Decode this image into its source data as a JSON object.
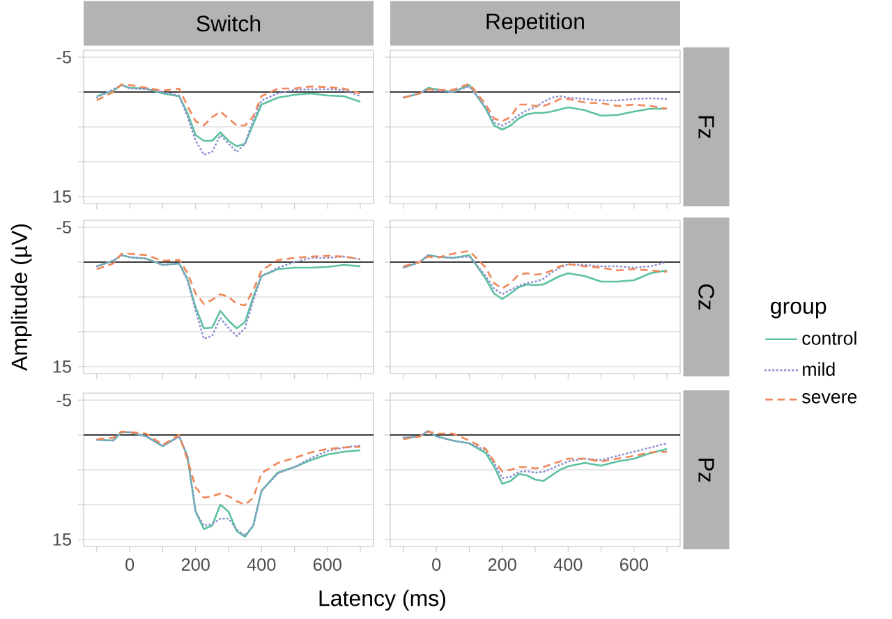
{
  "chart_data": [
    {
      "type": "line",
      "title": "Switch",
      "x": [
        -100,
        -50,
        -25,
        0,
        50,
        100,
        150,
        175,
        200,
        225,
        250,
        275,
        300,
        325,
        350,
        375,
        400,
        450,
        500,
        550,
        600,
        650,
        700
      ],
      "xlim": [
        -140,
        740
      ],
      "ylim": [
        16,
        -6
      ],
      "xticks": [
        {
          "value": -100,
          "label": null
        },
        0,
        {
          "value": 100,
          "label": null
        },
        200,
        {
          "value": 300,
          "label": null
        },
        400,
        {
          "value": 500,
          "label": null
        },
        600,
        {
          "value": 700,
          "label": null
        }
      ],
      "yticks": [
        -5,
        {
          "value": 0,
          "label": null
        },
        {
          "value": 5,
          "label": null
        },
        {
          "value": 10,
          "label": null
        },
        15
      ],
      "grid": "y",
      "tick_labels": "y",
      "ref_lines": [
        {
          "axis": "y",
          "value": 0,
          "color": "#000000"
        }
      ],
      "series": [
        {
          "color": "#5cc1a0",
          "line_style": "solid",
          "values": [
            0.6,
            -0.2,
            -1,
            -0.6,
            -0.5,
            0.2,
            0.6,
            3,
            6.2,
            7,
            7,
            5.8,
            7,
            7.8,
            7.4,
            4.6,
            1.8,
            0.8,
            0.4,
            0.2,
            0.5,
            0.6,
            1.4
          ]
        },
        {
          "color": "#8e90d0",
          "line_style": "dotted",
          "values": [
            0.8,
            -0.4,
            -1,
            -0.5,
            -0.4,
            0,
            0.5,
            3.5,
            7,
            9,
            8.6,
            6.2,
            7.4,
            8.6,
            7.4,
            4,
            1.2,
            0.2,
            -0.3,
            -0.4,
            -0.4,
            -0.3,
            0.6
          ]
        },
        {
          "color": "#f0875a",
          "line_style": "dashed",
          "values": [
            1.2,
            0,
            -1.1,
            -1,
            -0.6,
            -0.2,
            -0.5,
            2,
            4.2,
            4.8,
            3.6,
            2.8,
            3.8,
            4.8,
            4.8,
            3.5,
            0.6,
            -0.5,
            -0.5,
            -0.8,
            -0.7,
            -0.5,
            0.2
          ]
        }
      ]
    },
    {
      "type": "line",
      "title": "Repetition",
      "annotations": [
        "Fz"
      ],
      "x": [
        -100,
        -50,
        -25,
        0,
        50,
        100,
        150,
        175,
        200,
        225,
        250,
        275,
        300,
        325,
        350,
        375,
        400,
        450,
        500,
        550,
        600,
        650,
        700
      ],
      "xlim": [
        -140,
        740
      ],
      "ylim": [
        16,
        -6
      ],
      "xticks": [
        {
          "value": -100,
          "label": null
        },
        0,
        {
          "value": 100,
          "label": null
        },
        200,
        {
          "value": 300,
          "label": null
        },
        400,
        {
          "value": 500,
          "label": null
        },
        600,
        {
          "value": 700,
          "label": null
        }
      ],
      "yticks": [
        -5,
        {
          "value": 0,
          "label": null
        },
        {
          "value": 5,
          "label": null
        },
        {
          "value": 10,
          "label": null
        },
        15
      ],
      "grid": "y",
      "tick_labels": false,
      "ref_lines": [
        {
          "axis": "y",
          "value": 0,
          "color": "#000000"
        }
      ],
      "series": [
        {
          "color": "#5cc1a0",
          "line_style": "solid",
          "values": [
            0.8,
            0.2,
            -0.6,
            -0.4,
            0,
            -1,
            2.4,
            4.8,
            5.4,
            4.8,
            3.8,
            3.2,
            3,
            3,
            2.8,
            2.5,
            2.2,
            2.6,
            3.4,
            3.3,
            2.8,
            2.4,
            2.4
          ]
        },
        {
          "color": "#8e90d0",
          "line_style": "dotted",
          "values": [
            0.8,
            0.2,
            -0.4,
            -0.2,
            0,
            -0.8,
            2.2,
            4.4,
            4.8,
            4.2,
            3.3,
            2.6,
            2.2,
            1.4,
            0.8,
            0.6,
            0.8,
            1,
            1.2,
            1.2,
            1,
            0.9,
            1
          ]
        },
        {
          "color": "#f0875a",
          "line_style": "dashed",
          "values": [
            0.8,
            0.2,
            -0.4,
            -0.3,
            -0.3,
            -1.2,
            1.8,
            3.8,
            4.2,
            3.6,
            1.8,
            1.8,
            2,
            2,
            1.6,
            1,
            1,
            1.5,
            1.6,
            2,
            1.8,
            2,
            2.4
          ]
        }
      ]
    },
    {
      "type": "line",
      "ylabel": "Amplitude (µV)",
      "x": [
        -100,
        -50,
        -25,
        0,
        50,
        100,
        150,
        175,
        200,
        225,
        250,
        275,
        300,
        325,
        350,
        375,
        400,
        450,
        500,
        550,
        600,
        650,
        700
      ],
      "xlim": [
        -140,
        740
      ],
      "ylim": [
        16,
        -6
      ],
      "xticks": [
        {
          "value": -100,
          "label": null
        },
        0,
        {
          "value": 100,
          "label": null
        },
        200,
        {
          "value": 300,
          "label": null
        },
        400,
        {
          "value": 500,
          "label": null
        },
        600,
        {
          "value": 700,
          "label": null
        }
      ],
      "yticks": [
        -5,
        {
          "value": 0,
          "label": null
        },
        {
          "value": 5,
          "label": null
        },
        {
          "value": 10,
          "label": null
        },
        15
      ],
      "grid": "y",
      "tick_labels": "y",
      "ref_lines": [
        {
          "axis": "y",
          "value": 0,
          "color": "#000000"
        }
      ],
      "series": [
        {
          "color": "#5cc1a0",
          "line_style": "solid",
          "values": [
            0.6,
            -0.2,
            -1,
            -0.7,
            -0.5,
            0.4,
            0.2,
            2.4,
            6.5,
            9.5,
            9.4,
            7,
            8.4,
            9.5,
            8.6,
            5,
            2,
            1,
            0.8,
            0.8,
            0.7,
            0.4,
            0.6
          ]
        },
        {
          "color": "#8e90d0",
          "line_style": "dotted",
          "values": [
            0.6,
            -0.2,
            -1,
            -0.7,
            -0.5,
            0.4,
            0.2,
            2.6,
            7,
            11,
            10.6,
            8,
            9.5,
            10.6,
            9.5,
            5.5,
            2,
            0.8,
            0,
            -0.6,
            -0.6,
            -0.8,
            -0.4
          ]
        },
        {
          "color": "#f0875a",
          "line_style": "dashed",
          "values": [
            1,
            0.2,
            -1.2,
            -1.2,
            -1,
            -0.2,
            -0.3,
            1.5,
            4.5,
            6,
            5.4,
            4.6,
            5,
            6,
            6.2,
            4,
            1.2,
            -0.3,
            -0.6,
            -0.8,
            -0.9,
            -0.8,
            -0.4
          ]
        }
      ]
    },
    {
      "type": "line",
      "annotations": [
        "Cz"
      ],
      "legend": "right",
      "legend_title": "group",
      "x": [
        -100,
        -50,
        -25,
        0,
        50,
        100,
        150,
        175,
        200,
        225,
        250,
        275,
        300,
        325,
        350,
        375,
        400,
        450,
        500,
        550,
        600,
        650,
        700
      ],
      "xlim": [
        -140,
        740
      ],
      "ylim": [
        16,
        -6
      ],
      "xticks": [
        {
          "value": -100,
          "label": null
        },
        0,
        {
          "value": 100,
          "label": null
        },
        200,
        {
          "value": 300,
          "label": null
        },
        400,
        {
          "value": 500,
          "label": null
        },
        600,
        {
          "value": 700,
          "label": null
        }
      ],
      "yticks": [
        -5,
        {
          "value": 0,
          "label": null
        },
        {
          "value": 5,
          "label": null
        },
        {
          "value": 10,
          "label": null
        },
        15
      ],
      "grid": "y",
      "tick_labels": false,
      "ref_lines": [
        {
          "axis": "y",
          "value": 0,
          "color": "#000000"
        }
      ],
      "series": [
        {
          "name": "control",
          "color": "#5cc1a0",
          "line_style": "solid",
          "values": [
            0.8,
            0,
            -1,
            -0.8,
            -0.6,
            -1,
            2.4,
            4.5,
            5.3,
            4.5,
            3.6,
            3.2,
            3.3,
            3.2,
            2.6,
            2,
            1.6,
            2,
            2.8,
            2.8,
            2.6,
            1.6,
            1.2
          ]
        },
        {
          "name": "mild",
          "color": "#8e90d0",
          "line_style": "dotted",
          "values": [
            0.8,
            0,
            -1,
            -0.8,
            -0.6,
            -0.8,
            2,
            3.8,
            4.6,
            4,
            3.4,
            3,
            2.8,
            2.4,
            1.5,
            0.8,
            0.3,
            0.4,
            0.6,
            0.6,
            0.8,
            0.6,
            0
          ]
        },
        {
          "name": "severe",
          "color": "#f0875a",
          "line_style": "dashed",
          "values": [
            0.6,
            0,
            -0.8,
            -0.6,
            -1.2,
            -1.6,
            0.8,
            3,
            3.8,
            3,
            1.8,
            1.6,
            1.8,
            1.7,
            1.2,
            0.6,
            0.3,
            0.6,
            0.8,
            1.2,
            1,
            1.2,
            1.4
          ]
        }
      ]
    },
    {
      "type": "line",
      "xlabel": "Latency (ms)",
      "x": [
        -100,
        -50,
        -25,
        0,
        50,
        100,
        150,
        175,
        200,
        225,
        250,
        275,
        300,
        325,
        350,
        375,
        400,
        450,
        500,
        550,
        600,
        650,
        700
      ],
      "xlim": [
        -140,
        740
      ],
      "ylim": [
        16,
        -6
      ],
      "xticks": [
        {
          "value": -100,
          "label": null
        },
        0,
        {
          "value": 100,
          "label": null
        },
        200,
        {
          "value": 300,
          "label": null
        },
        400,
        {
          "value": 500,
          "label": null
        },
        600,
        {
          "value": 700,
          "label": null
        }
      ],
      "yticks": [
        -5,
        {
          "value": 0,
          "label": null
        },
        {
          "value": 5,
          "label": null
        },
        {
          "value": 10,
          "label": null
        },
        15
      ],
      "grid": "y",
      "ref_lines": [
        {
          "axis": "y",
          "value": 0,
          "color": "#000000"
        }
      ],
      "series": [
        {
          "color": "#5cc1a0",
          "line_style": "solid",
          "values": [
            0.7,
            0.8,
            -0.4,
            -0.4,
            0.2,
            1.6,
            0.2,
            3,
            11,
            13.5,
            13,
            10,
            11,
            13.8,
            14.6,
            13,
            8,
            5.4,
            4.6,
            3.6,
            2.8,
            2.4,
            2.2
          ]
        },
        {
          "color": "#8e90d0",
          "line_style": "dotted",
          "values": [
            0.7,
            0.8,
            -0.4,
            -0.4,
            0.2,
            1.6,
            0.2,
            3,
            11,
            13,
            12.8,
            12,
            12,
            13.6,
            14.4,
            13,
            8,
            5.5,
            4.6,
            3.3,
            2.3,
            1.8,
            1.5
          ]
        },
        {
          "color": "#f0875a",
          "line_style": "dashed",
          "values": [
            0.6,
            0.4,
            -0.5,
            -0.4,
            -0.2,
            1.4,
            0,
            3.5,
            7.5,
            9,
            8.8,
            8.4,
            8.8,
            9.5,
            10,
            9,
            5.5,
            4,
            3.3,
            2.5,
            2,
            1.8,
            1.7
          ]
        }
      ]
    },
    {
      "type": "line",
      "annotations": [
        "Pz"
      ],
      "x": [
        -100,
        -50,
        -25,
        0,
        50,
        100,
        150,
        175,
        200,
        225,
        250,
        275,
        300,
        325,
        350,
        375,
        400,
        450,
        500,
        550,
        600,
        650,
        700
      ],
      "xlim": [
        -140,
        740
      ],
      "ylim": [
        16,
        -6
      ],
      "xticks": [
        {
          "value": -100,
          "label": null
        },
        0,
        {
          "value": 100,
          "label": null
        },
        200,
        {
          "value": 300,
          "label": null
        },
        400,
        {
          "value": 500,
          "label": null
        },
        600,
        {
          "value": 700,
          "label": null
        }
      ],
      "yticks": [
        -5,
        {
          "value": 0,
          "label": null
        },
        {
          "value": 5,
          "label": null
        },
        {
          "value": 10,
          "label": null
        },
        15
      ],
      "grid": "y",
      "tick_labels": "x",
      "ref_lines": [
        {
          "axis": "y",
          "value": 0,
          "color": "#000000"
        }
      ],
      "series": [
        {
          "color": "#5cc1a0",
          "line_style": "solid",
          "values": [
            0.4,
            0.2,
            -0.6,
            0.2,
            0.8,
            1.2,
            2.6,
            4.5,
            7,
            6.6,
            5.6,
            5.8,
            6.4,
            6.6,
            5.8,
            5,
            4.5,
            4,
            4.4,
            3.8,
            3.4,
            2.6,
            2
          ]
        },
        {
          "color": "#8e90d0",
          "line_style": "dotted",
          "values": [
            0.4,
            0.2,
            -0.6,
            0.2,
            0.8,
            1.2,
            2.2,
            4,
            6.2,
            6,
            5.3,
            5.2,
            5.4,
            5.3,
            4.8,
            4.3,
            3.8,
            3.4,
            3.6,
            3,
            2.4,
            1.8,
            1.2
          ]
        },
        {
          "color": "#f0875a",
          "line_style": "dashed",
          "values": [
            0.6,
            0.2,
            -0.5,
            -0.2,
            -0.2,
            0.8,
            2,
            3.8,
            5.2,
            5,
            4.6,
            4.6,
            4.8,
            4.6,
            4.2,
            3.8,
            3.4,
            3.4,
            3.8,
            3.4,
            3,
            2.5,
            2.4
          ]
        }
      ]
    }
  ]
}
